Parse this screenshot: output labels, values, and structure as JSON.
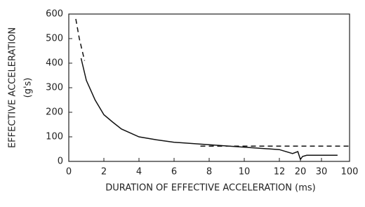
{
  "chart_data": {
    "type": "line",
    "y_label": "EFFECTIVE ACCELERATION",
    "y_label_unit": "(g's)",
    "x_label": "DURATION OF EFFECTIVE ACCELERATION (ms)",
    "xlim": [
      0,
      100
    ],
    "xticks": [
      0,
      2,
      4,
      6,
      8,
      10,
      12,
      20,
      30,
      100
    ],
    "ylim": [
      0,
      600
    ],
    "yticks": [
      0,
      100,
      200,
      300,
      400,
      500,
      600
    ],
    "grid": false,
    "series": [
      {
        "color": "#111111",
        "style": "solid",
        "x": [
          0.7,
          1,
          1.5,
          2,
          2.5,
          3,
          4,
          5,
          6,
          8,
          10,
          12,
          17,
          19,
          20,
          21,
          23,
          30,
          70
        ],
        "values": [
          420,
          330,
          250,
          190,
          160,
          132,
          100,
          88,
          78,
          68,
          58,
          48,
          32,
          40,
          8,
          20,
          25,
          25,
          25
        ]
      },
      {
        "color": "#111111",
        "style": "dashed",
        "x": [
          0.4,
          0.6,
          0.9,
          null,
          7.5,
          100
        ],
        "values": [
          580,
          500,
          410,
          null,
          62,
          62
        ]
      }
    ]
  }
}
